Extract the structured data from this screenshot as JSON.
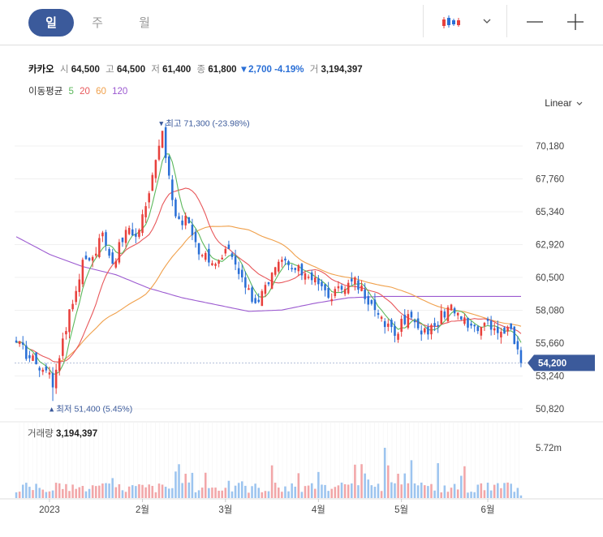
{
  "tabs": [
    {
      "label": "일",
      "active": true
    },
    {
      "label": "주",
      "active": false
    },
    {
      "label": "월",
      "active": false
    }
  ],
  "toolbar": {
    "chart_type_icon": "candlestick-icon",
    "dropdown_icon": "chevron-down-icon",
    "zoom_out_icon": "minus-icon",
    "zoom_in_icon": "plus-icon"
  },
  "stock": {
    "name": "카카오",
    "open_label": "시",
    "open": "64,500",
    "high_label": "고",
    "high": "64,500",
    "low_label": "저",
    "low": "61,400",
    "close_label": "종",
    "close": "61,800",
    "change": "2,700",
    "change_pct": "-4.19%",
    "volume_label": "거",
    "volume": "3,194,397"
  },
  "moving_average": {
    "label": "이동평균",
    "periods": [
      {
        "value": "5",
        "color": "#5cb85c"
      },
      {
        "value": "20",
        "color": "#e8585b"
      },
      {
        "value": "60",
        "color": "#f0a04b"
      },
      {
        "value": "120",
        "color": "#9b59d0"
      }
    ]
  },
  "scale_mode": "Linear",
  "colors": {
    "up": "#e8403c",
    "down": "#2a6fd6",
    "vol_up": "#f2a6a8",
    "vol_down": "#9cc4ef",
    "price_tag": "#3b5a9b"
  },
  "chart_data": {
    "type": "candlestick",
    "ylim": [
      50000,
      72000
    ],
    "yticks": [
      "70,180",
      "67,760",
      "65,340",
      "62,920",
      "60,500",
      "58,080",
      "55,660",
      "53,240",
      "50,820"
    ],
    "ytick_values": [
      70180,
      67760,
      65340,
      62920,
      60500,
      58080,
      55660,
      53240,
      50820
    ],
    "xlabels": [
      {
        "label": "2023",
        "index": 10
      },
      {
        "label": "2월",
        "index": 38
      },
      {
        "label": "3월",
        "index": 63
      },
      {
        "label": "4월",
        "index": 91
      },
      {
        "label": "5월",
        "index": 116
      },
      {
        "label": "6월",
        "index": 142
      }
    ],
    "candle_count": 153,
    "max_annotation": {
      "text": "최고 71,300 (-23.98%)",
      "index": 44,
      "value": 71300
    },
    "min_annotation": {
      "text": "최저 51,400 (5.45%)",
      "index": 11,
      "value": 51400
    },
    "current_price": {
      "label": "54,200",
      "value": 54200
    },
    "volume_label": "거래량",
    "volume_value": "3,194,397",
    "volume_axis_label": "5.72m",
    "volume_axis_value": 5.72,
    "anchors": [
      [
        0,
        55700
      ],
      [
        6,
        54100
      ],
      [
        10,
        53500
      ],
      [
        11,
        52400
      ],
      [
        14,
        56000
      ],
      [
        18,
        59500
      ],
      [
        20,
        61800
      ],
      [
        23,
        62000
      ],
      [
        26,
        63800
      ],
      [
        29,
        61500
      ],
      [
        33,
        64000
      ],
      [
        36,
        63500
      ],
      [
        40,
        66700
      ],
      [
        43,
        70200
      ],
      [
        44,
        71300
      ],
      [
        46,
        68000
      ],
      [
        48,
        65000
      ],
      [
        52,
        64500
      ],
      [
        55,
        62200
      ],
      [
        60,
        61500
      ],
      [
        64,
        62600
      ],
      [
        68,
        60500
      ],
      [
        72,
        58600
      ],
      [
        76,
        60000
      ],
      [
        80,
        61800
      ],
      [
        83,
        61100
      ],
      [
        87,
        60800
      ],
      [
        90,
        60500
      ],
      [
        94,
        59000
      ],
      [
        98,
        59600
      ],
      [
        102,
        60500
      ],
      [
        106,
        58500
      ],
      [
        110,
        57600
      ],
      [
        114,
        56200
      ],
      [
        118,
        57800
      ],
      [
        122,
        56300
      ],
      [
        126,
        56900
      ],
      [
        130,
        58300
      ],
      [
        134,
        57400
      ],
      [
        138,
        56900
      ],
      [
        142,
        57300
      ],
      [
        146,
        56500
      ],
      [
        149,
        56700
      ],
      [
        151,
        55200
      ],
      [
        152,
        54200
      ]
    ],
    "ma120_anchors": [
      [
        0,
        63500
      ],
      [
        10,
        62200
      ],
      [
        20,
        61300
      ],
      [
        30,
        60700
      ],
      [
        40,
        59700
      ],
      [
        50,
        59000
      ],
      [
        60,
        58500
      ],
      [
        70,
        58000
      ],
      [
        80,
        58100
      ],
      [
        90,
        58600
      ],
      [
        100,
        59000
      ],
      [
        110,
        59100
      ],
      [
        120,
        59100
      ],
      [
        130,
        59100
      ],
      [
        140,
        59100
      ],
      [
        152,
        59100
      ]
    ]
  }
}
